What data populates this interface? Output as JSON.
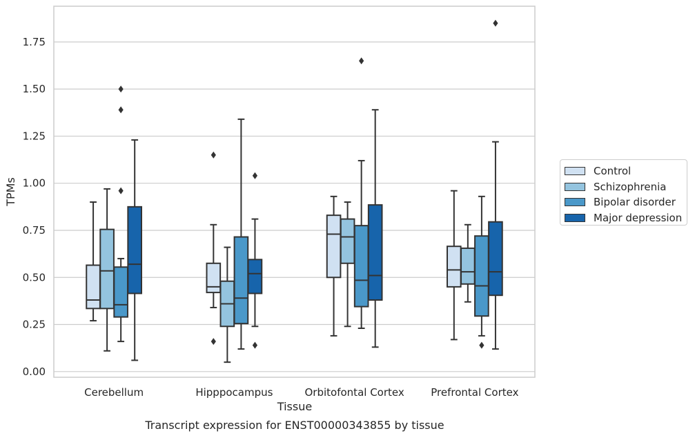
{
  "chart_data": {
    "type": "box",
    "xlabel": "Tissue",
    "ylabel": "TPMs",
    "caption": "Transcript expression for ENST00000343855 by tissue",
    "ylim": [
      -0.03,
      1.94
    ],
    "yticks": [
      0.0,
      0.25,
      0.5,
      0.75,
      1.0,
      1.25,
      1.5,
      1.75
    ],
    "ytick_labels": [
      "0.00",
      "0.25",
      "0.50",
      "0.75",
      "1.00",
      "1.25",
      "1.50",
      "1.75"
    ],
    "grid": true,
    "legend_position": "right",
    "categories": [
      "Cerebellum",
      "Hipppocampus",
      "Orbitofontal Cortex",
      "Prefrontal Cortex"
    ],
    "series": [
      {
        "name": "Control",
        "color": "#d0e1f2",
        "boxes": [
          {
            "whislo": 0.27,
            "q1": 0.335,
            "med": 0.38,
            "q3": 0.565,
            "whishi": 0.9,
            "fliers": []
          },
          {
            "whislo": 0.34,
            "q1": 0.42,
            "med": 0.45,
            "q3": 0.575,
            "whishi": 0.78,
            "fliers": [
              1.15,
              0.16
            ]
          },
          {
            "whislo": 0.19,
            "q1": 0.5,
            "med": 0.73,
            "q3": 0.83,
            "whishi": 0.93,
            "fliers": []
          },
          {
            "whislo": 0.17,
            "q1": 0.45,
            "med": 0.54,
            "q3": 0.665,
            "whishi": 0.96,
            "fliers": []
          }
        ]
      },
      {
        "name": "Schizophrenia",
        "color": "#94c4df",
        "boxes": [
          {
            "whislo": 0.11,
            "q1": 0.335,
            "med": 0.535,
            "q3": 0.755,
            "whishi": 0.97,
            "fliers": []
          },
          {
            "whislo": 0.05,
            "q1": 0.24,
            "med": 0.36,
            "q3": 0.48,
            "whishi": 0.66,
            "fliers": []
          },
          {
            "whislo": 0.24,
            "q1": 0.575,
            "med": 0.715,
            "q3": 0.81,
            "whishi": 0.9,
            "fliers": []
          },
          {
            "whislo": 0.37,
            "q1": 0.465,
            "med": 0.53,
            "q3": 0.655,
            "whishi": 0.78,
            "fliers": []
          }
        ]
      },
      {
        "name": "Bipolar disorder",
        "color": "#4a98c9",
        "boxes": [
          {
            "whislo": 0.16,
            "q1": 0.29,
            "med": 0.355,
            "q3": 0.555,
            "whishi": 0.6,
            "fliers": [
              1.5,
              1.39,
              0.96
            ]
          },
          {
            "whislo": 0.12,
            "q1": 0.255,
            "med": 0.39,
            "q3": 0.715,
            "whishi": 1.34,
            "fliers": []
          },
          {
            "whislo": 0.23,
            "q1": 0.345,
            "med": 0.485,
            "q3": 0.775,
            "whishi": 1.12,
            "fliers": [
              1.65
            ]
          },
          {
            "whislo": 0.19,
            "q1": 0.295,
            "med": 0.455,
            "q3": 0.72,
            "whishi": 0.93,
            "fliers": [
              0.14
            ]
          }
        ]
      },
      {
        "name": "Major depression",
        "color": "#1764ab",
        "boxes": [
          {
            "whislo": 0.06,
            "q1": 0.415,
            "med": 0.57,
            "q3": 0.875,
            "whishi": 1.23,
            "fliers": []
          },
          {
            "whislo": 0.24,
            "q1": 0.415,
            "med": 0.52,
            "q3": 0.595,
            "whishi": 0.81,
            "fliers": [
              1.04,
              0.14
            ]
          },
          {
            "whislo": 0.13,
            "q1": 0.38,
            "med": 0.51,
            "q3": 0.885,
            "whishi": 1.39,
            "fliers": []
          },
          {
            "whislo": 0.12,
            "q1": 0.405,
            "med": 0.53,
            "q3": 0.795,
            "whishi": 1.22,
            "fliers": [
              1.85
            ]
          }
        ]
      }
    ]
  }
}
